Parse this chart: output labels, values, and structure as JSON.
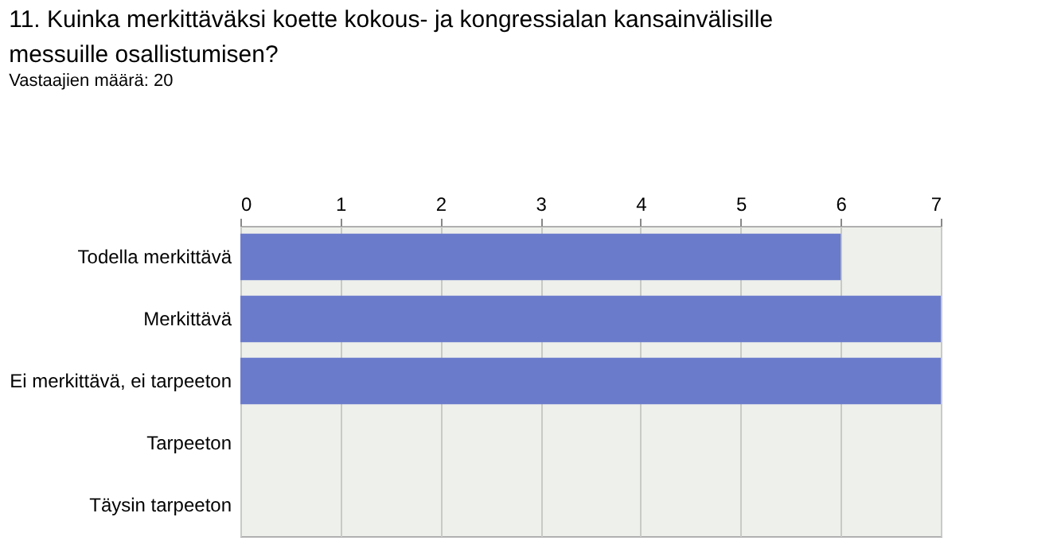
{
  "chart_data": {
    "type": "bar",
    "orientation": "horizontal",
    "title": "11. Kuinka merkittäväksi koette kokous- ja kongressialan kansainvälisille messuille osallistumisen?",
    "subtitle": "Vastaajien määrä: 20",
    "categories": [
      "Todella merkittävä",
      "Merkittävä",
      "Ei merkittävä, ei tarpeeton",
      "Tarpeeton",
      "Täysin tarpeeton"
    ],
    "values": [
      6,
      7,
      7,
      0,
      0
    ],
    "color": "#6b7bcc",
    "xlim": [
      0,
      7
    ],
    "xticks": [
      0,
      1,
      2,
      3,
      4,
      5,
      6,
      7
    ],
    "grid": "x"
  }
}
